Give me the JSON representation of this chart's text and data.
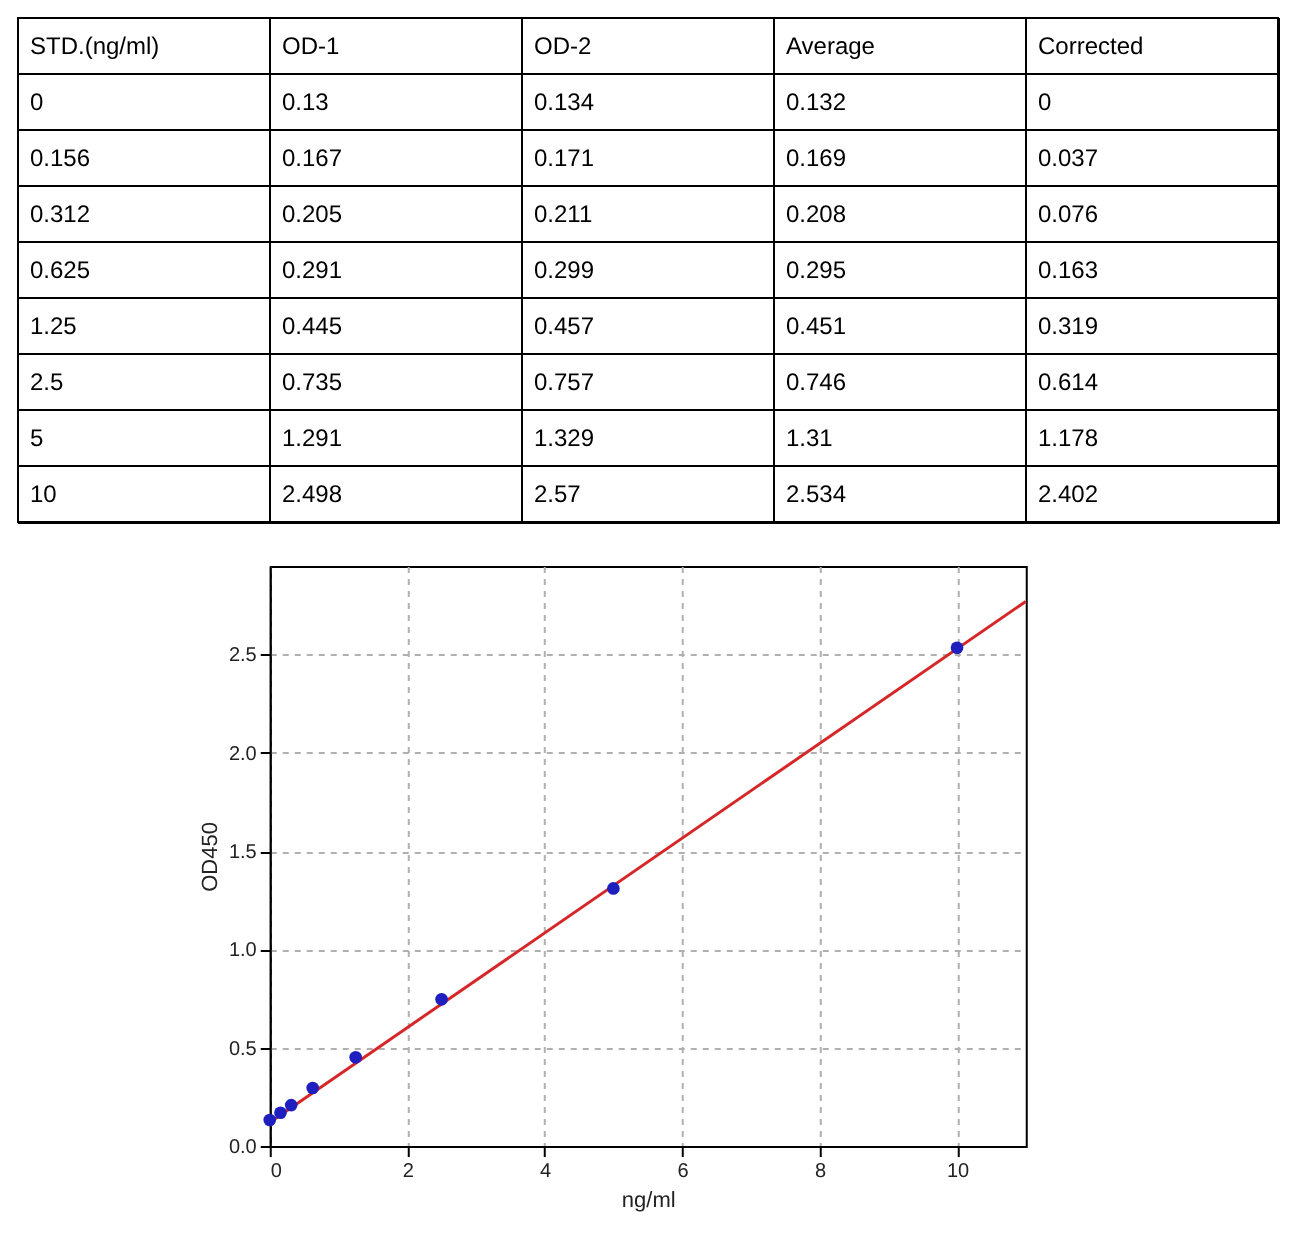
{
  "chart_data": [
    {
      "type": "other",
      "categories": [
        "STD.(ng/ml)",
        "OD-1",
        "OD-2",
        "Average",
        "Corrected"
      ],
      "annotations": [
        "0",
        "0.13",
        "0.134",
        "0.132",
        "0",
        "0.156",
        "0.167",
        "0.171",
        "0.169",
        "0.037",
        "0.312",
        "0.205",
        "0.211",
        "0.208",
        "0.076",
        "0.625",
        "0.291",
        "0.299",
        "0.295",
        "0.163",
        "1.25",
        "0.445",
        "0.457",
        "0.451",
        "0.319",
        "2.5",
        "0.735",
        "0.757",
        "0.746",
        "0.614",
        "5",
        "1.291",
        "1.329",
        "1.31",
        "1.178",
        "10",
        "2.498",
        "2.57",
        "2.534",
        "2.402"
      ]
    },
    {
      "type": "scatter",
      "xlabel": "ng/ml",
      "ylabel": "OD450",
      "x": [
        0,
        0.156,
        0.312,
        0.625,
        1.25,
        2.5,
        5,
        10
      ],
      "series": [
        {
          "type": "line",
          "color": "#d62728",
          "marker": "none",
          "x": [
            0,
            11
          ],
          "values": [
            0.12,
            2.77
          ]
        },
        {
          "type": "scatter",
          "color": "#1f1fbf",
          "values": [
            0.132,
            0.169,
            0.208,
            0.295,
            0.451,
            0.746,
            1.31,
            2.534
          ]
        }
      ],
      "xlim": [
        0,
        11
      ],
      "xticks": [
        0,
        2,
        4,
        6,
        8,
        10
      ],
      "ylim": [
        0,
        2.95
      ],
      "yticks": [
        {
          "value": 0,
          "label": "0.0"
        },
        {
          "value": 0.5,
          "label": "0.5"
        },
        {
          "value": 1,
          "label": "1.0"
        },
        {
          "value": 1.5,
          "label": "1.5"
        },
        {
          "value": 2,
          "label": "2.0"
        },
        {
          "value": 2.5,
          "label": "2.5"
        }
      ],
      "grid": true,
      "marker": "circle"
    }
  ]
}
